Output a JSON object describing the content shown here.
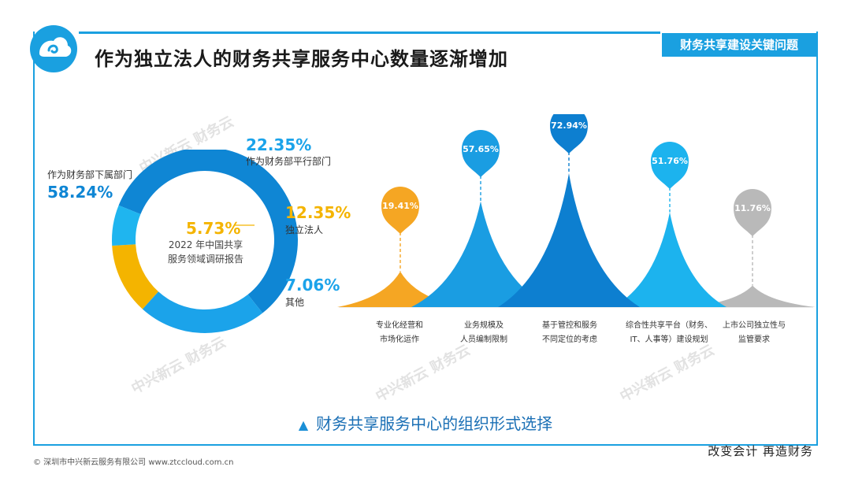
{
  "header": {
    "title": "作为独立法人的财务共享服务中心数量逐渐增加",
    "badge": "财务共享建设关键问题"
  },
  "watermark": "中兴新云 财务云",
  "donut": {
    "center_line1": "2022 年中国共享",
    "center_line2": "服务领域调研报告",
    "segments": [
      {
        "label": "作为财务部下属部门",
        "value": "58.24%",
        "color": "#0f86d4"
      },
      {
        "label": "作为财务部平行部门",
        "value": "22.35%",
        "color": "#1ba3ea"
      },
      {
        "label": "独立法人",
        "value": "12.35%",
        "color": "#f4b400"
      },
      {
        "label": "其他",
        "value": "7.06%",
        "color": "#1fb5ef"
      }
    ],
    "highlight": "5.73%"
  },
  "chart_data": [
    {
      "type": "pie",
      "categories": [
        "作为财务部下属部门",
        "作为财务部平行部门",
        "独立法人",
        "其他"
      ],
      "values": [
        58.24,
        22.35,
        12.35,
        7.06
      ],
      "annotation": "5.73%",
      "title": ""
    },
    {
      "type": "area",
      "categories": [
        "专业化经营和市场化运作",
        "业务规模及人员编制限制",
        "基于管控和服务不同定位的考虑",
        "综合性共享平台（财务、IT、人事等）建设规划",
        "上市公司独立性与监管要求"
      ],
      "values": [
        19.41,
        57.65,
        72.94,
        51.76,
        11.76
      ],
      "title": "财务共享服务中心的组织形式选择"
    }
  ],
  "peaks": {
    "labels": [
      "19.41%",
      "57.65%",
      "72.94%",
      "51.76%",
      "11.76%"
    ],
    "colors": [
      "#f5a623",
      "#1a9de2",
      "#0d7fd0",
      "#1cb3ee",
      "#b9b9b9"
    ],
    "cat_line1": [
      "专业化经营和",
      "业务规模及",
      "基于管控和服务",
      "综合性共享平台（财务、",
      "上市公司独立性与"
    ],
    "cat_line2": [
      "市场化运作",
      "人员编制限制",
      "不同定位的考虑",
      "IT、人事等）建设规划",
      "监管要求"
    ]
  },
  "subtitle": "财务共享服务中心的组织形式选择",
  "footer": {
    "left": "© 深圳市中兴新云服务有限公司   www.ztccloud.com.cn",
    "right": "改变会计  再造财务"
  }
}
